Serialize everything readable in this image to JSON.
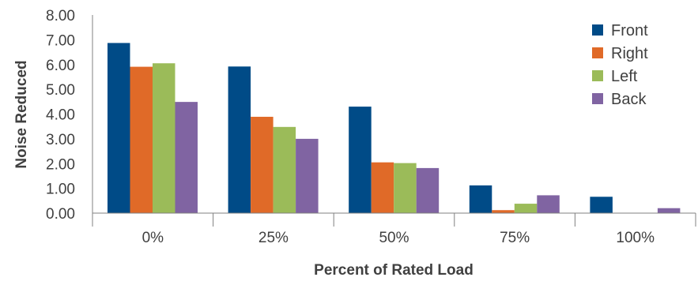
{
  "chart_data": {
    "type": "bar",
    "title": "",
    "xlabel": "Percent of Rated Load",
    "ylabel": "Noise Reduced",
    "categories": [
      "0%",
      "25%",
      "50%",
      "75%",
      "100%"
    ],
    "ylim": [
      0,
      8
    ],
    "yticks": [
      "0.00",
      "1.00",
      "2.00",
      "3.00",
      "4.00",
      "5.00",
      "6.00",
      "7.00",
      "8.00"
    ],
    "grid": false,
    "legend_position": "top-right",
    "series": [
      {
        "name": "Front",
        "color": "#004b87",
        "values": [
          6.87,
          5.92,
          4.3,
          1.12,
          0.66
        ]
      },
      {
        "name": "Right",
        "color": "#e06a28",
        "values": [
          5.91,
          3.89,
          2.05,
          0.12,
          0.0
        ]
      },
      {
        "name": "Left",
        "color": "#9bbb59",
        "values": [
          6.05,
          3.48,
          2.02,
          0.38,
          0.0
        ]
      },
      {
        "name": "Back",
        "color": "#8064a2",
        "values": [
          4.49,
          3.0,
          1.82,
          0.72,
          0.2
        ]
      }
    ]
  }
}
